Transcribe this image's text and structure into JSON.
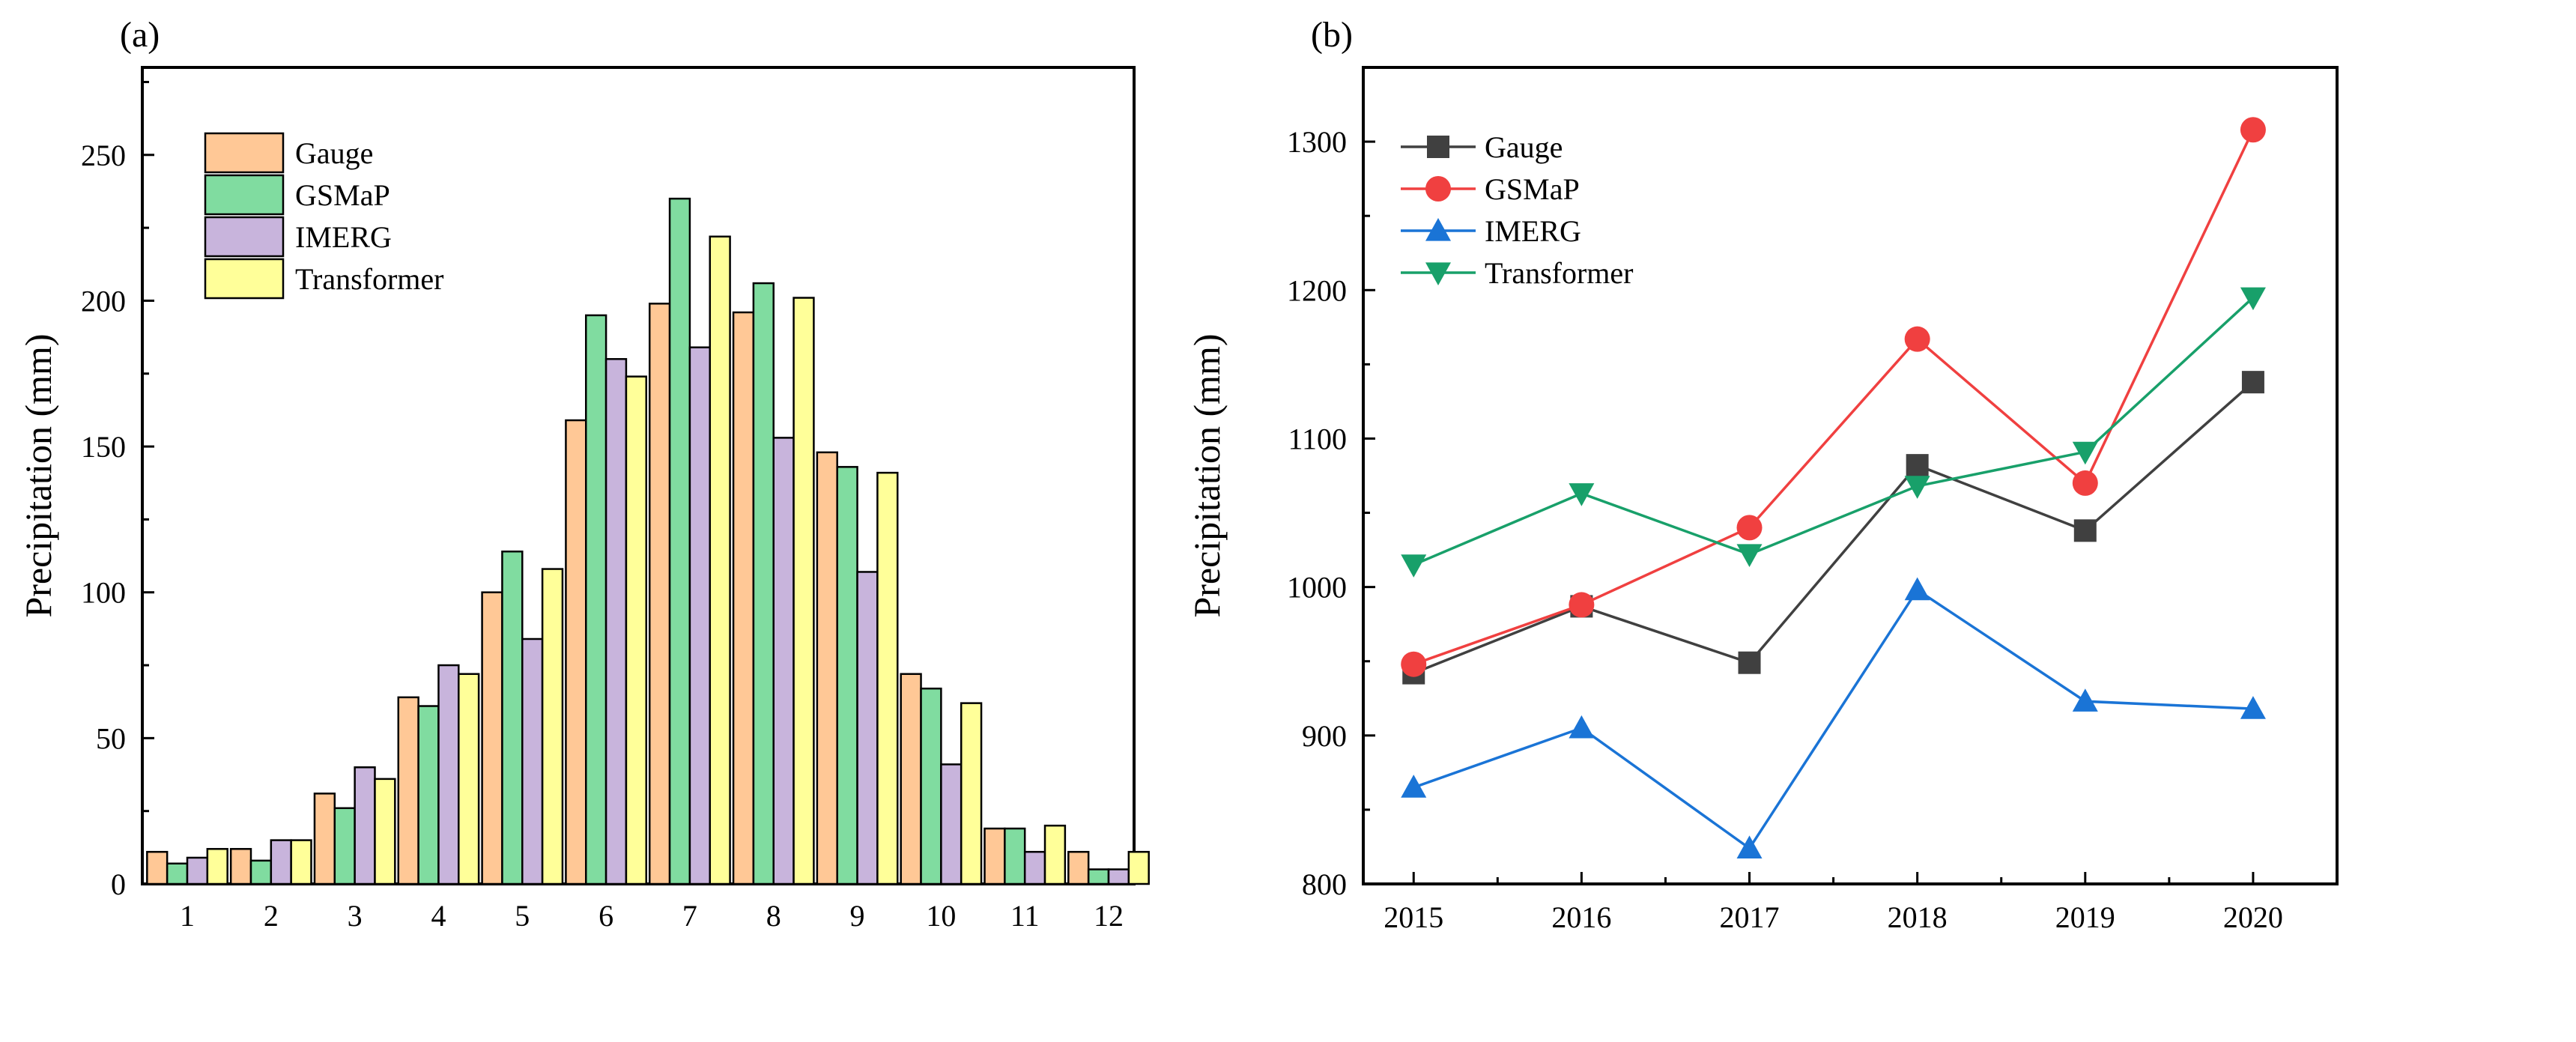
{
  "chart_data": [
    {
      "type": "bar",
      "panel_label": "(a)",
      "title": "",
      "xlabel": "",
      "ylabel": "Precipitation (mm)",
      "ylim": [
        0,
        280
      ],
      "yticks": [
        "0",
        "50",
        "100",
        "150",
        "200",
        "250"
      ],
      "ytick_values": [
        0,
        50,
        100,
        150,
        200,
        250
      ],
      "categories": [
        "1",
        "2",
        "3",
        "4",
        "5",
        "6",
        "7",
        "8",
        "9",
        "10",
        "11",
        "12"
      ],
      "legend_position": "top-left",
      "series": [
        {
          "name": "Gauge",
          "color": "#FFC896",
          "values": [
            11,
            12,
            31,
            64,
            100,
            159,
            199,
            196,
            148,
            72,
            19,
            11
          ]
        },
        {
          "name": "GSMaP",
          "color": "#80DCA0",
          "values": [
            7,
            8,
            26,
            61,
            114,
            195,
            235,
            206,
            143,
            67,
            19,
            5
          ]
        },
        {
          "name": "IMERG",
          "color": "#C8B4DC",
          "values": [
            9,
            15,
            40,
            75,
            84,
            180,
            184,
            153,
            107,
            41,
            11,
            5
          ]
        },
        {
          "name": "Transformer",
          "color": "#FFFF99",
          "values": [
            12,
            15,
            36,
            72,
            108,
            174,
            222,
            201,
            141,
            62,
            20,
            11
          ]
        }
      ]
    },
    {
      "type": "line",
      "panel_label": "(b)",
      "title": "",
      "xlabel": "",
      "ylabel": "Precipitation (mm)",
      "ylim": [
        800,
        1350
      ],
      "xlim": [
        2014.7,
        2020.5
      ],
      "yticks": [
        "800",
        "900",
        "1000",
        "1100",
        "1200",
        "1300"
      ],
      "ytick_values": [
        800,
        900,
        1000,
        1100,
        1200,
        1300
      ],
      "x": [
        "2015",
        "2016",
        "2017",
        "2018",
        "2019",
        "2020"
      ],
      "x_values": [
        2015,
        2016,
        2017,
        2018,
        2019,
        2020
      ],
      "legend_position": "top-left",
      "series": [
        {
          "name": "Gauge",
          "color": "#404040",
          "marker": "square",
          "values": [
            942,
            987,
            949,
            1082,
            1038,
            1138
          ]
        },
        {
          "name": "GSMaP",
          "color": "#F04040",
          "marker": "circle",
          "values": [
            948,
            988,
            1040,
            1167,
            1070,
            1308
          ]
        },
        {
          "name": "IMERG",
          "color": "#1A74D6",
          "marker": "triangle-up",
          "values": [
            865,
            905,
            824,
            998,
            923,
            918
          ]
        },
        {
          "name": "Transformer",
          "color": "#18A06A",
          "marker": "triangle-down",
          "values": [
            1015,
            1063,
            1022,
            1068,
            1091,
            1195
          ]
        }
      ]
    }
  ]
}
